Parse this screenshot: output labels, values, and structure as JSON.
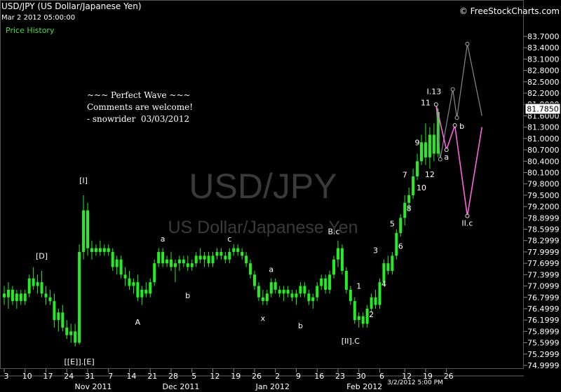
{
  "header": {
    "title": "USD/JPY (US Dollar/Japanese Yen)",
    "datetime": "Mar 2 2012 05:00:00",
    "panel_label": "Price History",
    "brand": "© FreeStockCharts.com"
  },
  "watermark": {
    "symbol": "USD/JPY",
    "name": "US Dollar/Japanese Yen"
  },
  "comment": {
    "line1": "~~~ Perfect Wave ~~~",
    "line2": "Comments are welcome!",
    "line3": "- snowrider  03/03/2012"
  },
  "colors": {
    "candle": "#22ee22",
    "projection_pink": "#ff66dd",
    "projection_gray": "#888888",
    "background": "#000000"
  },
  "chart_data": {
    "type": "candlestick",
    "ylim": [
      74.9999,
      83.7
    ],
    "y_ticks": [
      "83.7000",
      "83.4000",
      "83.1000",
      "82.8000",
      "82.5000",
      "82.2000",
      "81.9000",
      "81.6000",
      "81.3000",
      "81.0000",
      "80.7000",
      "80.4000",
      "80.1000",
      "79.8000",
      "79.5000",
      "79.2000",
      "78.8999",
      "78.5999",
      "78.2999",
      "77.9999",
      "77.6999",
      "77.3999",
      "77.0999",
      "76.7999",
      "76.4999",
      "76.1999",
      "75.8999",
      "75.5999",
      "75.2999",
      "74.9999"
    ],
    "current_price": "81.7850",
    "x_ticks": [
      {
        "label": "3",
        "i": 0
      },
      {
        "label": "10",
        "i": 5
      },
      {
        "label": "17",
        "i": 10
      },
      {
        "label": "24",
        "i": 15
      },
      {
        "label": "31",
        "i": 20
      },
      {
        "label": "7",
        "i": 25
      },
      {
        "label": "14",
        "i": 30
      },
      {
        "label": "21",
        "i": 35
      },
      {
        "label": "28",
        "i": 40
      },
      {
        "label": "5",
        "i": 45
      },
      {
        "label": "12",
        "i": 50
      },
      {
        "label": "19",
        "i": 55
      },
      {
        "label": "26",
        "i": 60
      },
      {
        "label": "2",
        "i": 65
      },
      {
        "label": "9",
        "i": 70
      },
      {
        "label": "16",
        "i": 75
      },
      {
        "label": "23",
        "i": 80
      },
      {
        "label": "30",
        "i": 85
      },
      {
        "label": "6",
        "i": 90
      },
      {
        "label": "12",
        "i": 96
      },
      {
        "label": "19",
        "i": 101
      },
      {
        "label": "26",
        "i": 106
      }
    ],
    "month_labels": [
      {
        "label": "Nov 2011",
        "i": 20
      },
      {
        "label": "Dec 2011",
        "i": 41
      },
      {
        "label": "Jan 2012",
        "i": 63
      },
      {
        "label": "Feb 2012",
        "i": 85
      }
    ],
    "crosshair_label": "3/2/2012 5:00 PM",
    "candles": [
      {
        "o": 76.9,
        "h": 77.1,
        "l": 76.6,
        "c": 76.8
      },
      {
        "o": 76.8,
        "h": 77.2,
        "l": 76.5,
        "c": 77.0
      },
      {
        "o": 77.0,
        "h": 77.1,
        "l": 76.6,
        "c": 76.7
      },
      {
        "o": 76.7,
        "h": 77.0,
        "l": 76.5,
        "c": 76.9
      },
      {
        "o": 76.9,
        "h": 77.0,
        "l": 76.6,
        "c": 76.7
      },
      {
        "o": 76.7,
        "h": 77.0,
        "l": 76.6,
        "c": 76.9
      },
      {
        "o": 76.9,
        "h": 77.4,
        "l": 76.8,
        "c": 77.3
      },
      {
        "o": 77.3,
        "h": 77.6,
        "l": 77.0,
        "c": 77.1
      },
      {
        "o": 77.1,
        "h": 77.4,
        "l": 76.9,
        "c": 77.2
      },
      {
        "o": 77.2,
        "h": 77.5,
        "l": 76.8,
        "c": 76.9
      },
      {
        "o": 76.9,
        "h": 77.1,
        "l": 76.6,
        "c": 76.8
      },
      {
        "o": 76.8,
        "h": 77.0,
        "l": 76.6,
        "c": 76.7
      },
      {
        "o": 76.7,
        "h": 76.9,
        "l": 76.0,
        "c": 76.2
      },
      {
        "o": 76.2,
        "h": 76.5,
        "l": 75.9,
        "c": 76.4
      },
      {
        "o": 76.4,
        "h": 76.6,
        "l": 75.9,
        "c": 76.0
      },
      {
        "o": 76.0,
        "h": 76.2,
        "l": 75.7,
        "c": 75.8
      },
      {
        "o": 75.8,
        "h": 76.1,
        "l": 75.6,
        "c": 75.9
      },
      {
        "o": 75.9,
        "h": 76.1,
        "l": 75.5,
        "c": 75.6
      },
      {
        "o": 75.6,
        "h": 78.2,
        "l": 75.55,
        "c": 78.0
      },
      {
        "o": 78.0,
        "h": 79.5,
        "l": 77.8,
        "c": 79.1
      },
      {
        "o": 79.1,
        "h": 79.3,
        "l": 77.9,
        "c": 78.1
      },
      {
        "o": 78.1,
        "h": 78.3,
        "l": 77.8,
        "c": 78.0
      },
      {
        "o": 78.0,
        "h": 78.2,
        "l": 77.9,
        "c": 78.1
      },
      {
        "o": 78.1,
        "h": 78.3,
        "l": 77.9,
        "c": 78.0
      },
      {
        "o": 78.0,
        "h": 78.2,
        "l": 77.9,
        "c": 78.1
      },
      {
        "o": 78.1,
        "h": 78.2,
        "l": 77.9,
        "c": 78.0
      },
      {
        "o": 78.0,
        "h": 78.1,
        "l": 77.5,
        "c": 77.6
      },
      {
        "o": 77.6,
        "h": 77.9,
        "l": 77.4,
        "c": 77.8
      },
      {
        "o": 77.8,
        "h": 77.9,
        "l": 77.3,
        "c": 77.4
      },
      {
        "o": 77.4,
        "h": 77.6,
        "l": 77.1,
        "c": 77.3
      },
      {
        "o": 77.3,
        "h": 77.5,
        "l": 77.0,
        "c": 77.1
      },
      {
        "o": 77.1,
        "h": 77.3,
        "l": 76.9,
        "c": 77.2
      },
      {
        "o": 77.2,
        "h": 77.4,
        "l": 76.7,
        "c": 76.8
      },
      {
        "o": 76.8,
        "h": 77.1,
        "l": 76.6,
        "c": 77.0
      },
      {
        "o": 77.0,
        "h": 77.2,
        "l": 76.8,
        "c": 76.9
      },
      {
        "o": 76.9,
        "h": 77.3,
        "l": 76.8,
        "c": 77.2
      },
      {
        "o": 77.2,
        "h": 77.8,
        "l": 77.1,
        "c": 77.7
      },
      {
        "o": 77.7,
        "h": 78.1,
        "l": 77.6,
        "c": 78.0
      },
      {
        "o": 78.0,
        "h": 78.1,
        "l": 77.6,
        "c": 77.7
      },
      {
        "o": 77.7,
        "h": 77.9,
        "l": 77.6,
        "c": 77.8
      },
      {
        "o": 77.8,
        "h": 78.0,
        "l": 77.5,
        "c": 77.6
      },
      {
        "o": 77.6,
        "h": 77.8,
        "l": 77.2,
        "c": 77.7
      },
      {
        "o": 77.7,
        "h": 77.9,
        "l": 77.5,
        "c": 77.8
      },
      {
        "o": 77.8,
        "h": 77.9,
        "l": 77.6,
        "c": 77.7
      },
      {
        "o": 77.7,
        "h": 77.9,
        "l": 77.5,
        "c": 77.6
      },
      {
        "o": 77.6,
        "h": 77.8,
        "l": 77.5,
        "c": 77.7
      },
      {
        "o": 77.7,
        "h": 78.0,
        "l": 77.6,
        "c": 77.9
      },
      {
        "o": 77.9,
        "h": 78.1,
        "l": 77.7,
        "c": 77.8
      },
      {
        "o": 77.8,
        "h": 78.0,
        "l": 77.6,
        "c": 77.9
      },
      {
        "o": 77.9,
        "h": 78.0,
        "l": 77.6,
        "c": 77.7
      },
      {
        "o": 77.7,
        "h": 78.0,
        "l": 77.6,
        "c": 77.9
      },
      {
        "o": 77.9,
        "h": 78.1,
        "l": 77.8,
        "c": 78.0
      },
      {
        "o": 78.0,
        "h": 78.1,
        "l": 77.8,
        "c": 77.9
      },
      {
        "o": 77.9,
        "h": 78.0,
        "l": 77.7,
        "c": 77.8
      },
      {
        "o": 77.8,
        "h": 78.1,
        "l": 77.7,
        "c": 78.0
      },
      {
        "o": 78.0,
        "h": 78.2,
        "l": 77.9,
        "c": 78.1
      },
      {
        "o": 78.1,
        "h": 78.2,
        "l": 77.9,
        "c": 78.0
      },
      {
        "o": 78.0,
        "h": 78.1,
        "l": 77.8,
        "c": 77.9
      },
      {
        "o": 77.9,
        "h": 78.0,
        "l": 77.6,
        "c": 77.7
      },
      {
        "o": 77.7,
        "h": 77.8,
        "l": 77.3,
        "c": 77.4
      },
      {
        "o": 77.4,
        "h": 77.5,
        "l": 77.0,
        "c": 77.1
      },
      {
        "o": 77.1,
        "h": 77.2,
        "l": 76.7,
        "c": 76.8
      },
      {
        "o": 76.8,
        "h": 77.0,
        "l": 76.6,
        "c": 76.7
      },
      {
        "o": 76.7,
        "h": 77.0,
        "l": 76.6,
        "c": 76.9
      },
      {
        "o": 76.9,
        "h": 77.3,
        "l": 76.8,
        "c": 77.2
      },
      {
        "o": 77.2,
        "h": 77.3,
        "l": 76.9,
        "c": 77.0
      },
      {
        "o": 77.0,
        "h": 77.1,
        "l": 76.8,
        "c": 76.9
      },
      {
        "o": 76.9,
        "h": 77.1,
        "l": 76.7,
        "c": 77.0
      },
      {
        "o": 77.0,
        "h": 77.1,
        "l": 76.8,
        "c": 76.9
      },
      {
        "o": 76.9,
        "h": 77.0,
        "l": 76.7,
        "c": 76.8
      },
      {
        "o": 76.8,
        "h": 77.0,
        "l": 76.6,
        "c": 76.9
      },
      {
        "o": 76.9,
        "h": 77.2,
        "l": 76.8,
        "c": 77.1
      },
      {
        "o": 77.1,
        "h": 77.2,
        "l": 76.8,
        "c": 76.9
      },
      {
        "o": 76.9,
        "h": 77.0,
        "l": 76.6,
        "c": 76.7
      },
      {
        "o": 76.7,
        "h": 76.9,
        "l": 76.5,
        "c": 76.8
      },
      {
        "o": 76.8,
        "h": 77.2,
        "l": 76.7,
        "c": 77.1
      },
      {
        "o": 77.1,
        "h": 77.4,
        "l": 77.0,
        "c": 77.3
      },
      {
        "o": 77.3,
        "h": 77.4,
        "l": 76.9,
        "c": 77.0
      },
      {
        "o": 77.0,
        "h": 77.5,
        "l": 76.9,
        "c": 77.4
      },
      {
        "o": 77.4,
        "h": 77.9,
        "l": 77.3,
        "c": 77.8
      },
      {
        "o": 77.8,
        "h": 78.3,
        "l": 77.6,
        "c": 78.1
      },
      {
        "o": 78.1,
        "h": 78.2,
        "l": 77.4,
        "c": 77.5
      },
      {
        "o": 77.5,
        "h": 77.6,
        "l": 76.9,
        "c": 77.0
      },
      {
        "o": 77.0,
        "h": 77.1,
        "l": 76.6,
        "c": 76.7
      },
      {
        "o": 76.7,
        "h": 76.8,
        "l": 76.1,
        "c": 76.2
      },
      {
        "o": 76.2,
        "h": 76.4,
        "l": 76.0,
        "c": 76.3
      },
      {
        "o": 76.3,
        "h": 76.4,
        "l": 76.0,
        "c": 76.1
      },
      {
        "o": 76.1,
        "h": 76.6,
        "l": 76.0,
        "c": 76.5
      },
      {
        "o": 76.5,
        "h": 76.9,
        "l": 76.4,
        "c": 76.8
      },
      {
        "o": 76.8,
        "h": 77.0,
        "l": 76.5,
        "c": 76.6
      },
      {
        "o": 76.6,
        "h": 77.3,
        "l": 76.5,
        "c": 77.2
      },
      {
        "o": 77.2,
        "h": 77.8,
        "l": 77.1,
        "c": 77.7
      },
      {
        "o": 77.7,
        "h": 77.9,
        "l": 77.4,
        "c": 77.5
      },
      {
        "o": 77.5,
        "h": 78.0,
        "l": 77.4,
        "c": 77.9
      },
      {
        "o": 77.9,
        "h": 78.6,
        "l": 77.8,
        "c": 78.5
      },
      {
        "o": 78.5,
        "h": 79.0,
        "l": 78.4,
        "c": 78.9
      },
      {
        "o": 78.9,
        "h": 79.5,
        "l": 78.7,
        "c": 79.3
      },
      {
        "o": 79.3,
        "h": 79.7,
        "l": 79.1,
        "c": 79.5
      },
      {
        "o": 79.5,
        "h": 80.2,
        "l": 79.4,
        "c": 80.0
      },
      {
        "o": 80.0,
        "h": 80.6,
        "l": 79.9,
        "c": 80.4
      },
      {
        "o": 80.4,
        "h": 81.1,
        "l": 80.3,
        "c": 80.9
      },
      {
        "o": 80.9,
        "h": 81.4,
        "l": 80.3,
        "c": 80.5
      },
      {
        "o": 80.5,
        "h": 81.3,
        "l": 80.2,
        "c": 81.1
      },
      {
        "o": 81.1,
        "h": 81.4,
        "l": 80.4,
        "c": 80.6
      },
      {
        "o": 80.6,
        "h": 81.8,
        "l": 80.5,
        "c": 81.7
      }
    ],
    "wave_labels": [
      {
        "t": "[D]",
        "i": 9,
        "v": 77.75,
        "pos": "above"
      },
      {
        "t": "[I]",
        "i": 19,
        "v": 79.75,
        "pos": "above"
      },
      {
        "t": "[[E]].[E]",
        "i": 18,
        "v": 75.25,
        "pos": "below"
      },
      {
        "t": "A",
        "i": 32,
        "v": 76.3,
        "pos": "below"
      },
      {
        "t": "a",
        "i": 38,
        "v": 78.2,
        "pos": "above"
      },
      {
        "t": "b",
        "i": 44,
        "v": 77.0,
        "pos": "below"
      },
      {
        "t": "c",
        "i": 54,
        "v": 78.2,
        "pos": "above"
      },
      {
        "t": "x",
        "i": 62,
        "v": 76.4,
        "pos": "below"
      },
      {
        "t": "a",
        "i": 64,
        "v": 77.4,
        "pos": "above"
      },
      {
        "t": "b",
        "i": 71,
        "v": 76.2,
        "pos": "below"
      },
      {
        "t": "B.c",
        "i": 79,
        "v": 78.4,
        "pos": "above"
      },
      {
        "t": "[II].C",
        "i": 83,
        "v": 75.8,
        "pos": "below"
      },
      {
        "t": "1",
        "i": 85,
        "v": 76.95,
        "pos": "above"
      },
      {
        "t": "2",
        "i": 88,
        "v": 76.5,
        "pos": "below"
      },
      {
        "t": "3",
        "i": 89,
        "v": 77.9,
        "pos": "above"
      },
      {
        "t": "4",
        "i": 91,
        "v": 77.3,
        "pos": "below"
      },
      {
        "t": "5",
        "i": 93,
        "v": 78.6,
        "pos": "above"
      },
      {
        "t": "6",
        "i": 95,
        "v": 78.3,
        "pos": "below"
      },
      {
        "t": "7",
        "i": 96,
        "v": 79.9,
        "pos": "above"
      },
      {
        "t": "8",
        "i": 97,
        "v": 79.3,
        "pos": "below"
      },
      {
        "t": "9",
        "i": 99,
        "v": 80.75,
        "pos": "above"
      },
      {
        "t": "10",
        "i": 100,
        "v": 79.85,
        "pos": "below"
      },
      {
        "t": "11",
        "i": 101,
        "v": 81.8,
        "pos": "above"
      },
      {
        "t": "12",
        "i": 102,
        "v": 80.2,
        "pos": "below"
      },
      {
        "t": "I.13",
        "i": 103,
        "v": 82.1,
        "pos": "above"
      }
    ],
    "projection_pink": [
      {
        "i": 103.5,
        "v": 81.9,
        "label": ""
      },
      {
        "i": 106,
        "v": 80.7,
        "label": "a"
      },
      {
        "i": 108,
        "v": 81.35,
        "label": "b"
      },
      {
        "i": 111,
        "v": 78.95,
        "label": "II.c"
      },
      {
        "i": 114.5,
        "v": 81.3,
        "label": ""
      }
    ],
    "projection_gray": [
      {
        "i": 103.5,
        "v": 81.9
      },
      {
        "i": 104.5,
        "v": 80.45
      },
      {
        "i": 107.5,
        "v": 82.3
      },
      {
        "i": 108.5,
        "v": 81.55
      },
      {
        "i": 111,
        "v": 83.5
      },
      {
        "i": 114.5,
        "v": 81.6
      }
    ]
  }
}
